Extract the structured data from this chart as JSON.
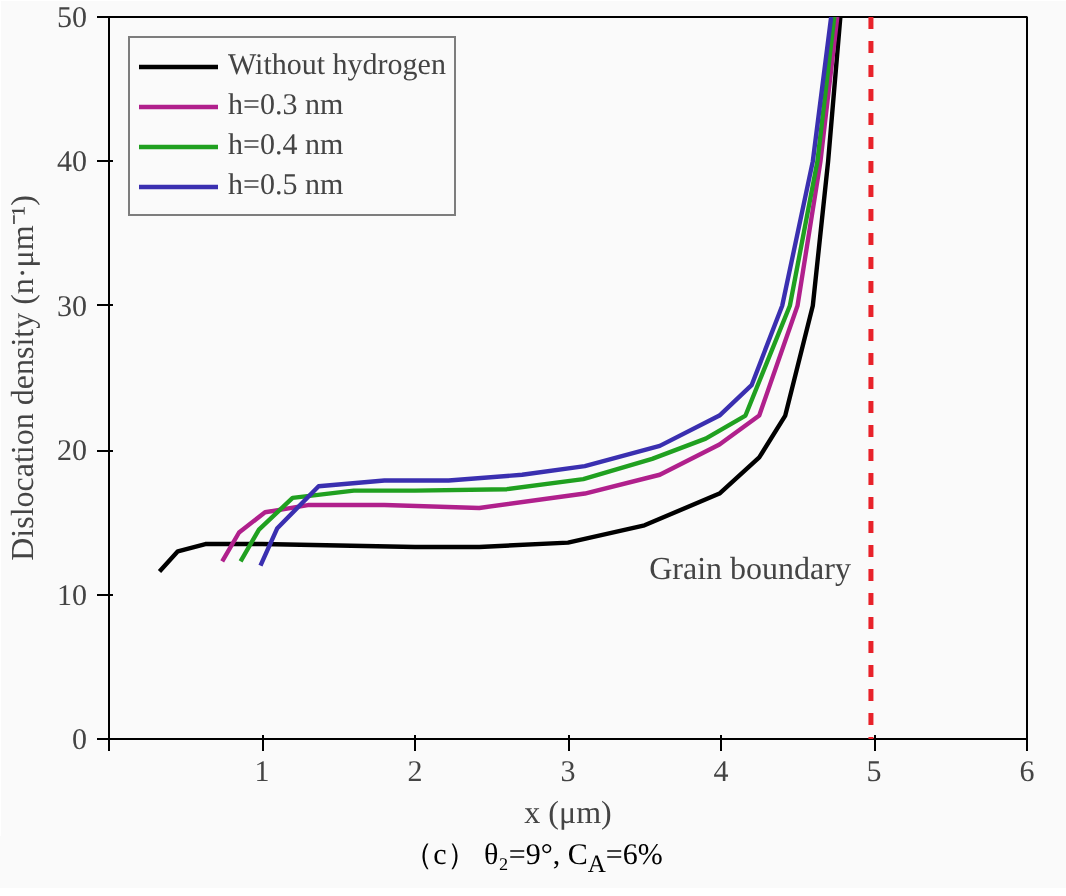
{
  "chart_data": {
    "type": "line",
    "title": "（c） θ₂=9°, C$_{A}$=6%",
    "xlabel": "x (μm)",
    "ylabel": "Dislocation density (n·μm⁻¹)",
    "xlim": [
      0,
      6
    ],
    "ylim": [
      0,
      50
    ],
    "xticks": [
      {
        "value": 0,
        "label": null
      },
      1,
      2,
      3,
      4,
      5,
      6
    ],
    "yticks": [
      0,
      10,
      20,
      30,
      40,
      50
    ],
    "grid": false,
    "legend": "top left",
    "line_style": "solid",
    "marker": "none",
    "series": [
      {
        "name": "Without hydrogen",
        "color": "#000000",
        "x": [
          0.33,
          0.45,
          0.63,
          1.0,
          1.5,
          2.0,
          2.42,
          3.0,
          3.5,
          3.99,
          4.25,
          4.42,
          4.6,
          4.7,
          4.78
        ],
        "values": [
          11.6,
          13.0,
          13.5,
          13.5,
          13.4,
          13.3,
          13.3,
          13.6,
          14.8,
          17.0,
          19.5,
          22.4,
          30,
          40,
          50
        ]
      },
      {
        "name": "h=0.3 nm",
        "color": "#b0208c",
        "x": [
          0.74,
          0.85,
          1.02,
          1.3,
          1.8,
          2.42,
          3.11,
          3.6,
          3.99,
          4.25,
          4.5,
          4.65,
          4.76
        ],
        "values": [
          12.3,
          14.3,
          15.7,
          16.2,
          16.2,
          16.0,
          17.0,
          18.3,
          20.4,
          22.4,
          30,
          40,
          50
        ]
      },
      {
        "name": "h=0.4 nm",
        "color": "#20a020",
        "x": [
          0.86,
          0.98,
          1.2,
          1.6,
          2.0,
          2.6,
          3.1,
          3.55,
          3.9,
          4.16,
          4.45,
          4.63,
          4.74
        ],
        "values": [
          12.3,
          14.5,
          16.7,
          17.2,
          17.2,
          17.3,
          18.0,
          19.4,
          20.8,
          22.4,
          30,
          40,
          50
        ]
      },
      {
        "name": "h=0.5 nm",
        "color": "#3a2fb0",
        "x": [
          0.99,
          1.1,
          1.37,
          1.8,
          2.22,
          2.7,
          3.11,
          3.6,
          3.99,
          4.2,
          4.4,
          4.6,
          4.72
        ],
        "values": [
          12.0,
          14.6,
          17.5,
          17.9,
          17.9,
          18.3,
          18.9,
          20.3,
          22.4,
          24.5,
          30,
          40,
          50
        ]
      }
    ],
    "ref_lines": [
      {
        "axis": "x",
        "value": 4.98,
        "label": "Grain boundary",
        "color": "#e8222a",
        "line_style": "dashed"
      }
    ]
  }
}
